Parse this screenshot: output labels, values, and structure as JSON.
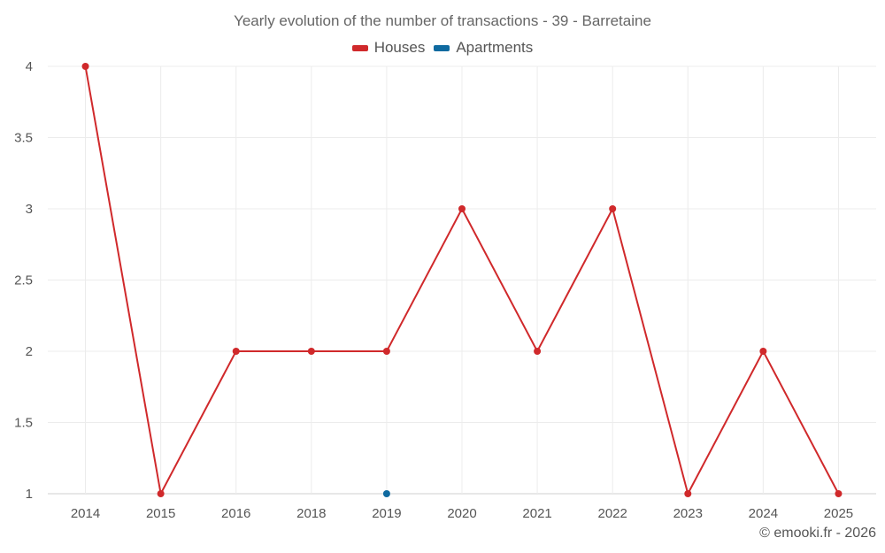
{
  "chart_data": {
    "type": "line",
    "title": "Yearly evolution of the number of transactions - 39 - Barretaine",
    "categories": [
      "2014",
      "2015",
      "2016",
      "2018",
      "2019",
      "2020",
      "2021",
      "2022",
      "2023",
      "2024",
      "2025"
    ],
    "series": [
      {
        "name": "Houses",
        "color": "#d0292b",
        "values": [
          4,
          1,
          2,
          2,
          2,
          3,
          2,
          3,
          1,
          2,
          1
        ]
      },
      {
        "name": "Apartments",
        "color": "#0f6aa0",
        "values": [
          null,
          null,
          null,
          null,
          1,
          null,
          null,
          null,
          null,
          null,
          null
        ]
      }
    ],
    "ylim": [
      1,
      4
    ],
    "yticks": [
      1,
      1.5,
      2,
      2.5,
      3,
      3.5,
      4
    ],
    "xlabel": "",
    "ylabel": "",
    "grid": true,
    "legend": "top-center"
  },
  "footer": {
    "credit": "© emooki.fr - 2026"
  }
}
